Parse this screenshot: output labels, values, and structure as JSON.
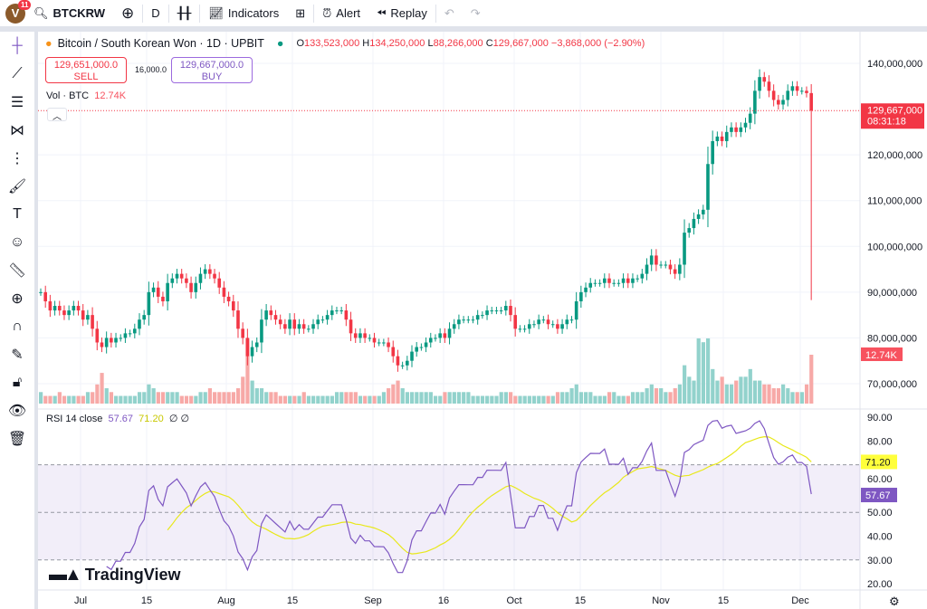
{
  "topbar": {
    "avatar_letter": "V",
    "notifications": "11",
    "symbol": "BTCKRW",
    "interval": "D",
    "indicators": "Indicators",
    "alert": "Alert",
    "replay": "Replay"
  },
  "legend": {
    "title": "Bitcoin / South Korean Won · 1D · UPBIT",
    "o_label": "O",
    "o": "133,523,000",
    "h_label": "H",
    "h": "134,250,000",
    "l_label": "L",
    "l": "88,266,000",
    "c_label": "C",
    "c": "129,667,000",
    "change": "−3,868,000 (−2.90%)"
  },
  "trade": {
    "sell_price": "129,651,000.0",
    "sell_label": "SELL",
    "spread": "16,000.0",
    "buy_price": "129,667,000.0",
    "buy_label": "BUY"
  },
  "volume_legend": {
    "label": "Vol · BTC",
    "value": "12.74K"
  },
  "rsi_legend": {
    "label": "RSI 14 close",
    "rsi": "57.67",
    "ma": "71.20",
    "ph1": "∅",
    "ph2": "∅"
  },
  "price_scale": {
    "ticks": [
      "140,000,000",
      "120,000,000",
      "110,000,000",
      "100,000,000",
      "90,000,000",
      "80,000,000",
      "70,000,000"
    ],
    "last_price": "129,667,000",
    "countdown": "08:31:18",
    "volume_badge": "12.74K"
  },
  "rsi_scale": {
    "ticks": [
      "90.00",
      "80.00",
      "60.00",
      "50.00",
      "40.00",
      "30.00",
      "20.00"
    ],
    "rsi_badge": "57.67",
    "ma_badge": "71.20"
  },
  "time_axis": [
    "Jul",
    "15",
    "Aug",
    "15",
    "Sep",
    "16",
    "Oct",
    "15",
    "Nov",
    "15",
    "Dec"
  ],
  "watermark": "TradingView",
  "colors": {
    "up": "#089981",
    "down": "#f23645",
    "vol_up": "#92d2cc",
    "vol_down": "#f7a9a7",
    "rsi": "#7e57c2",
    "rsi_ma": "#e8e81a"
  },
  "chart_data": {
    "type": "candlestick",
    "unit": "KRW (millions)",
    "ylim": [
      65,
      142
    ],
    "closes": [
      90,
      88,
      86,
      87,
      86,
      85,
      86,
      87,
      86,
      84,
      85,
      82,
      79,
      78,
      80,
      79,
      80,
      80,
      81,
      81,
      82,
      84,
      85,
      90,
      91,
      89,
      88,
      92,
      93,
      94,
      93,
      92,
      90,
      92,
      94,
      95,
      94,
      93,
      91,
      89,
      88,
      86,
      82,
      80,
      76,
      78,
      79,
      84,
      86,
      85,
      84,
      83,
      82,
      84,
      82,
      83,
      82,
      82,
      83,
      84,
      84,
      85,
      86,
      86,
      86,
      84,
      81,
      80,
      81,
      80,
      80,
      79,
      79,
      79,
      78,
      76,
      74,
      74,
      75,
      77,
      78,
      78,
      79,
      80,
      80,
      81,
      80,
      82,
      83,
      84,
      84,
      84,
      84,
      85,
      85,
      86,
      86,
      86,
      86,
      87,
      85,
      82,
      82,
      82,
      83,
      83,
      84,
      84,
      83,
      83,
      82,
      83,
      84,
      84,
      88,
      90,
      91,
      92,
      92,
      92,
      93,
      92,
      92,
      92,
      93,
      92,
      93,
      93,
      94,
      96,
      98,
      96,
      96,
      96,
      95,
      94,
      96,
      103,
      104,
      106,
      107,
      108,
      118,
      123,
      124,
      123,
      125,
      126,
      125,
      126,
      127,
      129,
      134,
      137,
      136,
      134,
      132,
      131,
      132,
      134,
      135,
      134,
      134,
      133.5,
      129.667
    ],
    "last_low": 88.266,
    "volumes_k": [
      3,
      2,
      2,
      2,
      3,
      2,
      2,
      2,
      2,
      2,
      3,
      3,
      5,
      8,
      4,
      3,
      2,
      2,
      2,
      2,
      2,
      3,
      3,
      5,
      4,
      3,
      3,
      3,
      3,
      3,
      2,
      2,
      2,
      2,
      3,
      3,
      4,
      3,
      3,
      3,
      3,
      3,
      4,
      7,
      17,
      6,
      4,
      4,
      3,
      3,
      3,
      2,
      2,
      2,
      2,
      2,
      3,
      2,
      2,
      2,
      2,
      2,
      2,
      3,
      3,
      3,
      3,
      3,
      2,
      2,
      2,
      2,
      2,
      3,
      4,
      5,
      6,
      4,
      3,
      3,
      3,
      3,
      3,
      3,
      2,
      2,
      3,
      3,
      3,
      3,
      3,
      3,
      2,
      2,
      2,
      2,
      2,
      2,
      3,
      3,
      3,
      2,
      2,
      2,
      2,
      2,
      2,
      2,
      2,
      2,
      3,
      3,
      3,
      4,
      5,
      3,
      3,
      3,
      2,
      2,
      2,
      3,
      3,
      2,
      2,
      2,
      3,
      3,
      3,
      4,
      5,
      4,
      4,
      3,
      3,
      4,
      5,
      10,
      7,
      6,
      17,
      16,
      17,
      9,
      6,
      7,
      5,
      5,
      6,
      7,
      7,
      9,
      6,
      6,
      5,
      5,
      4,
      4,
      5,
      4,
      3,
      3,
      3,
      5,
      12.74
    ]
  }
}
